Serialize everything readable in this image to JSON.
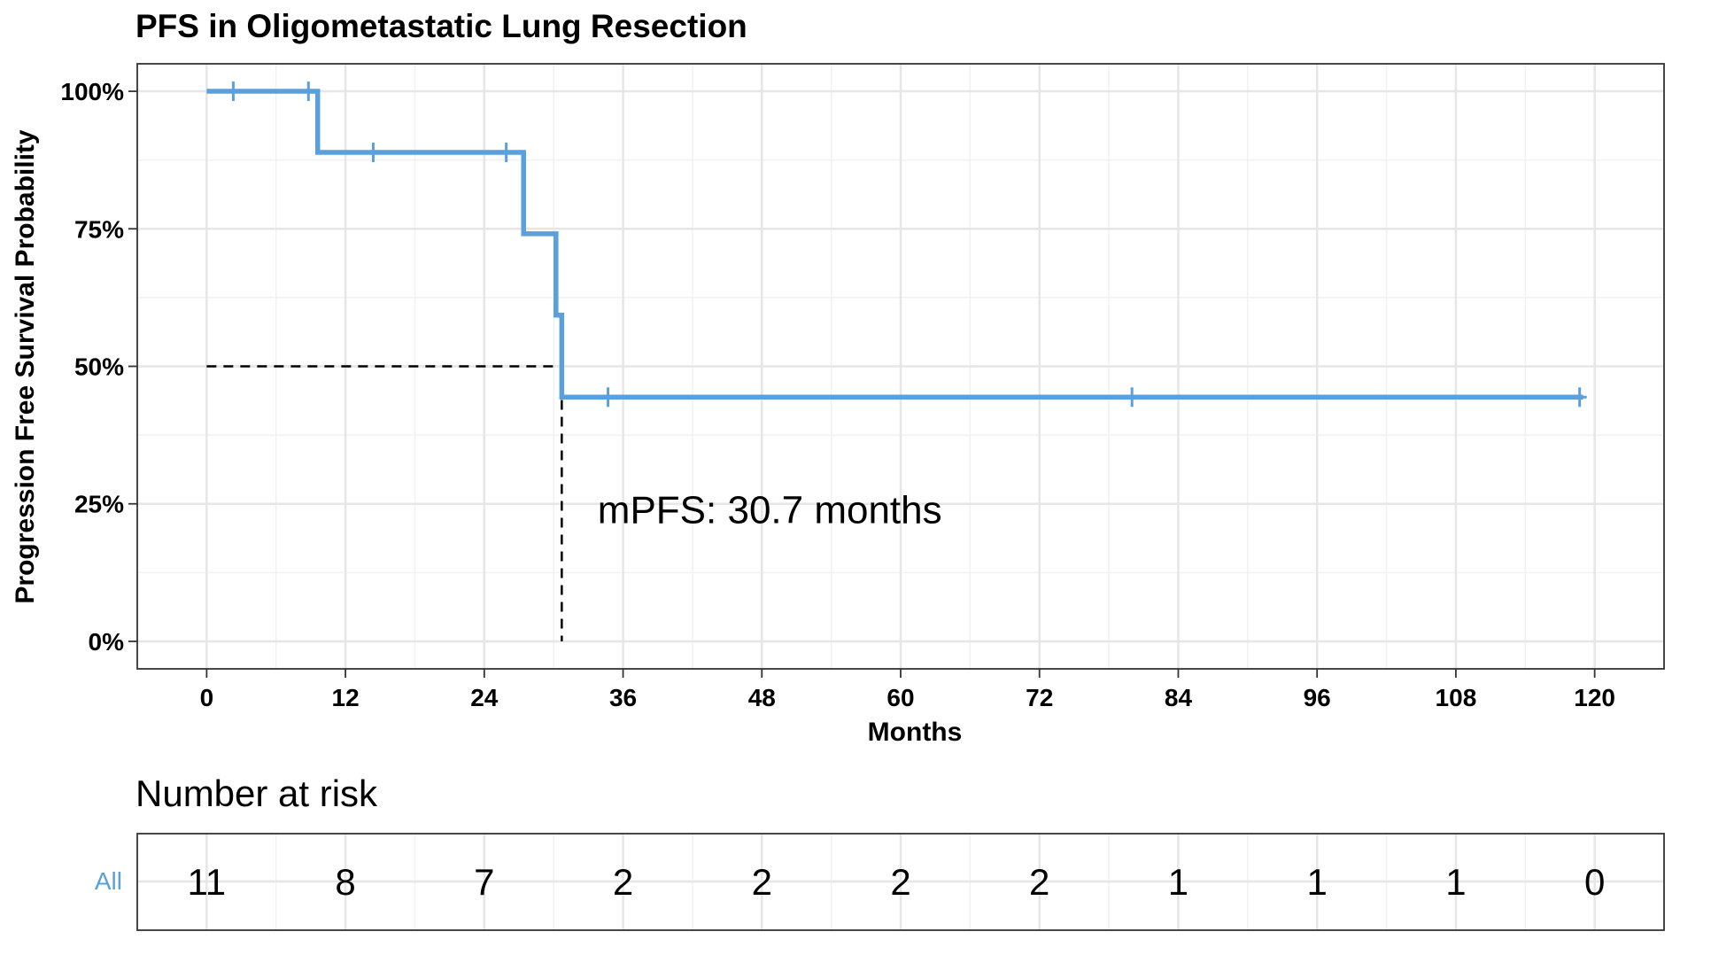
{
  "chart_data": {
    "type": "line",
    "title": "PFS in Oligometastatic Lung Resection",
    "xlabel": "Months",
    "ylabel": "Progression Free Survival Probability",
    "xlim": [
      -6,
      126
    ],
    "ylim": [
      -0.05,
      1.05
    ],
    "x_ticks": [
      0,
      12,
      24,
      36,
      48,
      60,
      72,
      84,
      96,
      108,
      120
    ],
    "x_tick_labels": [
      "0",
      "12",
      "24",
      "36",
      "48",
      "60",
      "72",
      "84",
      "96",
      "108",
      "120"
    ],
    "y_ticks": [
      0,
      0.25,
      0.5,
      0.75,
      1.0
    ],
    "y_tick_labels": [
      "0%",
      "25%",
      "50%",
      "75%",
      "100%"
    ],
    "grid": true,
    "legend": "none",
    "series": [
      {
        "name": "All",
        "color": "#5aa0dc",
        "steps": [
          {
            "x": 0,
            "y": 1.0
          },
          {
            "x": 9.6,
            "y": 0.889
          },
          {
            "x": 27.4,
            "y": 0.741
          },
          {
            "x": 30.2,
            "y": 0.593
          },
          {
            "x": 30.7,
            "y": 0.444
          },
          {
            "x": 119,
            "y": 0.444
          }
        ],
        "censor_marks": [
          {
            "x": 2.3,
            "y": 1.0
          },
          {
            "x": 8.8,
            "y": 1.0
          },
          {
            "x": 14.4,
            "y": 0.889
          },
          {
            "x": 25.9,
            "y": 0.889
          },
          {
            "x": 34.7,
            "y": 0.444
          },
          {
            "x": 80.0,
            "y": 0.444
          },
          {
            "x": 118.7,
            "y": 0.444
          }
        ]
      }
    ],
    "median_line": {
      "x": 30.7,
      "y": 0.5
    },
    "annotation": "mPFS: 30.7 months"
  },
  "risk_table": {
    "title": "Number at risk",
    "strata_label": "All",
    "times": [
      0,
      12,
      24,
      36,
      48,
      60,
      72,
      84,
      96,
      108,
      120
    ],
    "values": [
      "11",
      "8",
      "7",
      "2",
      "2",
      "2",
      "2",
      "1",
      "1",
      "1",
      "0"
    ]
  }
}
